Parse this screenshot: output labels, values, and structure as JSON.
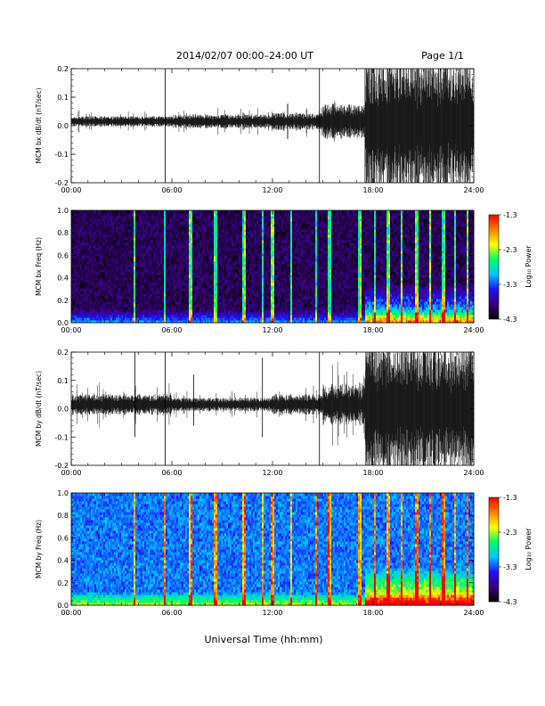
{
  "header": {
    "title": "2014/02/07  00:00–24:00 UT",
    "page": "Page 1/1"
  },
  "footer": {
    "xlabel": "Universal Time (hh:mm)"
  },
  "x_ticks": [
    "00:00",
    "06:00",
    "12:00",
    "18:00",
    "24:00"
  ],
  "colorbar": {
    "label": "Log₁₀ Power",
    "ticks": [
      "-1.3",
      "-2.3",
      "-3.3",
      "-4.3"
    ],
    "stops": [
      "#000000",
      "#3a007a",
      "#1f10ff",
      "#00c8ff",
      "#00ff60",
      "#ffff00",
      "#ff8000",
      "#ff0000"
    ]
  },
  "chart_data": [
    {
      "type": "line",
      "title": "",
      "xlabel": "",
      "ylabel": "MCM bx dB/dt (nT/sec)",
      "xlim": [
        0,
        24
      ],
      "ylim": [
        -0.2,
        0.2
      ],
      "y_ticks": [
        "0.2",
        "0.1",
        "0.0",
        "-0.1",
        "-0.2"
      ],
      "color": "#000000",
      "segments": [
        {
          "from": 0,
          "to": 6,
          "amplitude": 0.015
        },
        {
          "from": 6,
          "to": 12,
          "amplitude": 0.02
        },
        {
          "from": 12,
          "to": 15,
          "amplitude": 0.025
        },
        {
          "from": 15,
          "to": 17.5,
          "amplitude": 0.05
        },
        {
          "from": 17.5,
          "to": 24,
          "amplitude": 0.2
        }
      ],
      "spikes": [
        {
          "x": 5.6,
          "ymin": -0.2,
          "ymax": 0.2
        },
        {
          "x": 14.8,
          "ymin": -0.2,
          "ymax": 0.2
        }
      ]
    },
    {
      "type": "heatmap",
      "title": "",
      "xlabel": "",
      "ylabel": "MCM bx Freq (Hz)",
      "xlim": [
        0,
        24
      ],
      "ylim": [
        0,
        1.0
      ],
      "y_ticks": [
        "1.0",
        "0.8",
        "0.6",
        "0.4",
        "0.2",
        "0.0"
      ],
      "zlabel": "Log₁₀ Power",
      "zlim": [
        -4.3,
        -1.3
      ],
      "background_level": -4.0,
      "low_freq_enhancement_after_hour": 17.5,
      "vertical_stripes_hours": [
        3.8,
        5.6,
        7.1,
        8.6,
        10.3,
        11.4,
        12.0,
        13.1,
        14.6,
        15.4,
        17.2,
        18.1,
        18.9,
        19.7,
        20.6,
        21.4,
        22.2,
        22.9,
        23.6
      ]
    },
    {
      "type": "line",
      "title": "",
      "xlabel": "",
      "ylabel": "MCM by dB/dt (nT/sec)",
      "xlim": [
        0,
        24
      ],
      "ylim": [
        -0.2,
        0.2
      ],
      "y_ticks": [
        "0.2",
        "0.1",
        "0.0",
        "-0.1",
        "-0.2"
      ],
      "color": "#000000",
      "segments": [
        {
          "from": 0,
          "to": 6,
          "amplitude": 0.03
        },
        {
          "from": 6,
          "to": 12,
          "amplitude": 0.02
        },
        {
          "from": 12,
          "to": 15,
          "amplitude": 0.03
        },
        {
          "from": 15,
          "to": 17.5,
          "amplitude": 0.06
        },
        {
          "from": 17.5,
          "to": 24,
          "amplitude": 0.2
        }
      ],
      "spikes": [
        {
          "x": 3.8,
          "ymin": -0.1,
          "ymax": 0.2
        },
        {
          "x": 5.6,
          "ymin": -0.2,
          "ymax": 0.2
        },
        {
          "x": 7.3,
          "ymin": -0.06,
          "ymax": 0.12
        },
        {
          "x": 11.4,
          "ymin": -0.1,
          "ymax": 0.18
        },
        {
          "x": 14.8,
          "ymin": -0.2,
          "ymax": 0.2
        }
      ]
    },
    {
      "type": "heatmap",
      "title": "",
      "xlabel": "",
      "ylabel": "MCM by Freq (Hz)",
      "xlim": [
        0,
        24
      ],
      "ylim": [
        0,
        1.0
      ],
      "y_ticks": [
        "1.0",
        "0.8",
        "0.6",
        "0.4",
        "0.2",
        "0.0"
      ],
      "zlabel": "Log₁₀ Power",
      "zlim": [
        -4.3,
        -1.3
      ],
      "background_level": -3.2,
      "low_freq_enhancement_after_hour": 17.5,
      "vertical_stripes_hours": [
        3.8,
        5.6,
        7.1,
        8.6,
        10.3,
        11.4,
        12.0,
        13.1,
        14.6,
        15.4,
        17.2,
        18.1,
        18.9,
        19.7,
        20.6,
        21.4,
        22.2,
        22.9,
        23.6
      ]
    }
  ]
}
